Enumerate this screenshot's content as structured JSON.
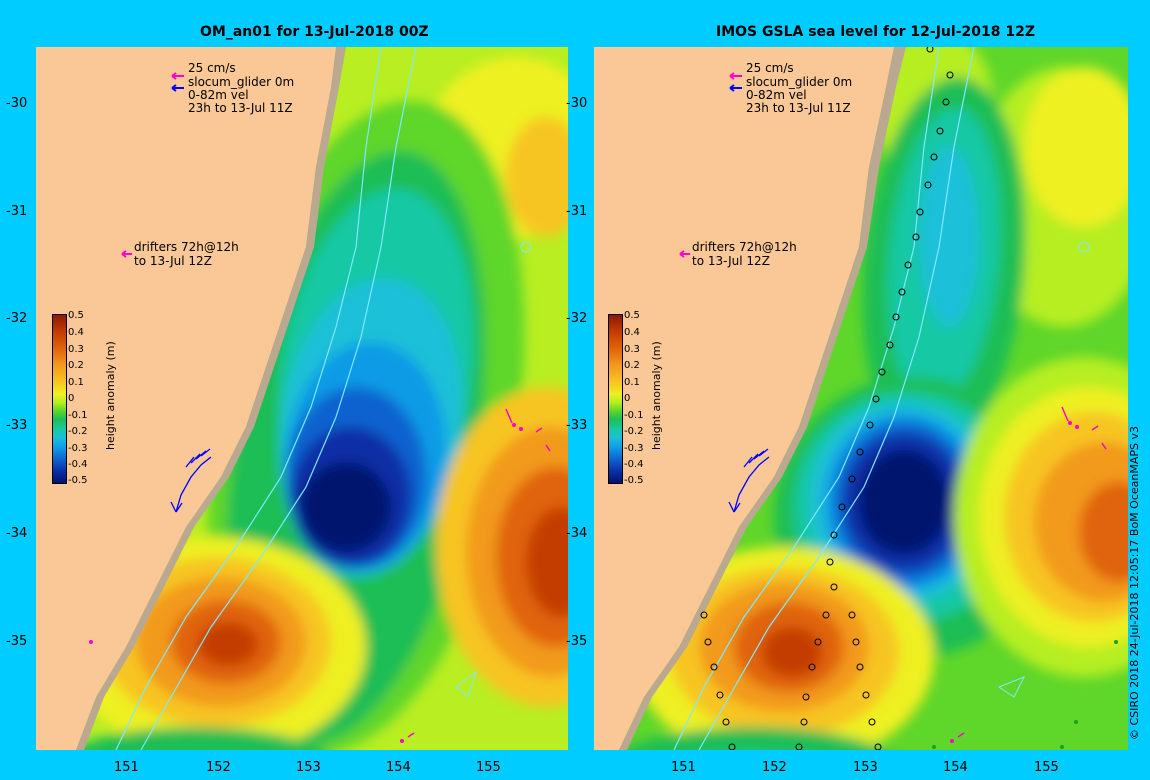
{
  "left_panel": {
    "title": "OM_an01 for 13-Jul-2018 00Z",
    "legend_speed": "25 cm/s",
    "legend_glider": "slocum_glider 0m",
    "legend_vel": "0-82m vel",
    "legend_time": "23h to 13-Jul 11Z",
    "drifters_line1": "drifters 72h@12h",
    "drifters_line2": "to 13-Jul 12Z"
  },
  "right_panel": {
    "title": "IMOS GSLA sea level  for 12-Jul-2018 12Z",
    "legend_speed": "25 cm/s",
    "legend_glider": "slocum_glider 0m",
    "legend_vel": "0-82m vel",
    "legend_time": "23h to 13-Jul 11Z",
    "drifters_line1": "drifters 72h@12h",
    "drifters_line2": "to 13-Jul 12Z"
  },
  "axes": {
    "y_ticks": [
      "-30",
      "-31",
      "-32",
      "-33",
      "-34",
      "-35"
    ],
    "x_ticks": [
      "151",
      "152",
      "153",
      "154",
      "155"
    ]
  },
  "colorbar": {
    "title": "height anomaly (m)",
    "labels": [
      "0.5",
      "0.4",
      "0.3",
      "0.2",
      "0.1",
      "0",
      "-0.1",
      "-0.2",
      "-0.3",
      "-0.4",
      "-0.5"
    ],
    "colors": [
      "#8b1a00",
      "#c43c00",
      "#e0640a",
      "#f29a1e",
      "#f7c520",
      "#eef020",
      "#b6ee20",
      "#5fd62a",
      "#1fbe55",
      "#18c8a4",
      "#1bc0d8",
      "#119be6",
      "#0f62cf",
      "#0a2fa6",
      "#05126e"
    ]
  },
  "credit": "© CSIRO 2018   24-Jul-2018 12:05:17 BoM OceanMAPS v3",
  "colors": {
    "background": "#00ccff",
    "land": "#f9c896",
    "shelf": "#bba890",
    "contour": "#7fe8ff",
    "drifter": "#ff00cc",
    "velocity": "#0000ff"
  }
}
